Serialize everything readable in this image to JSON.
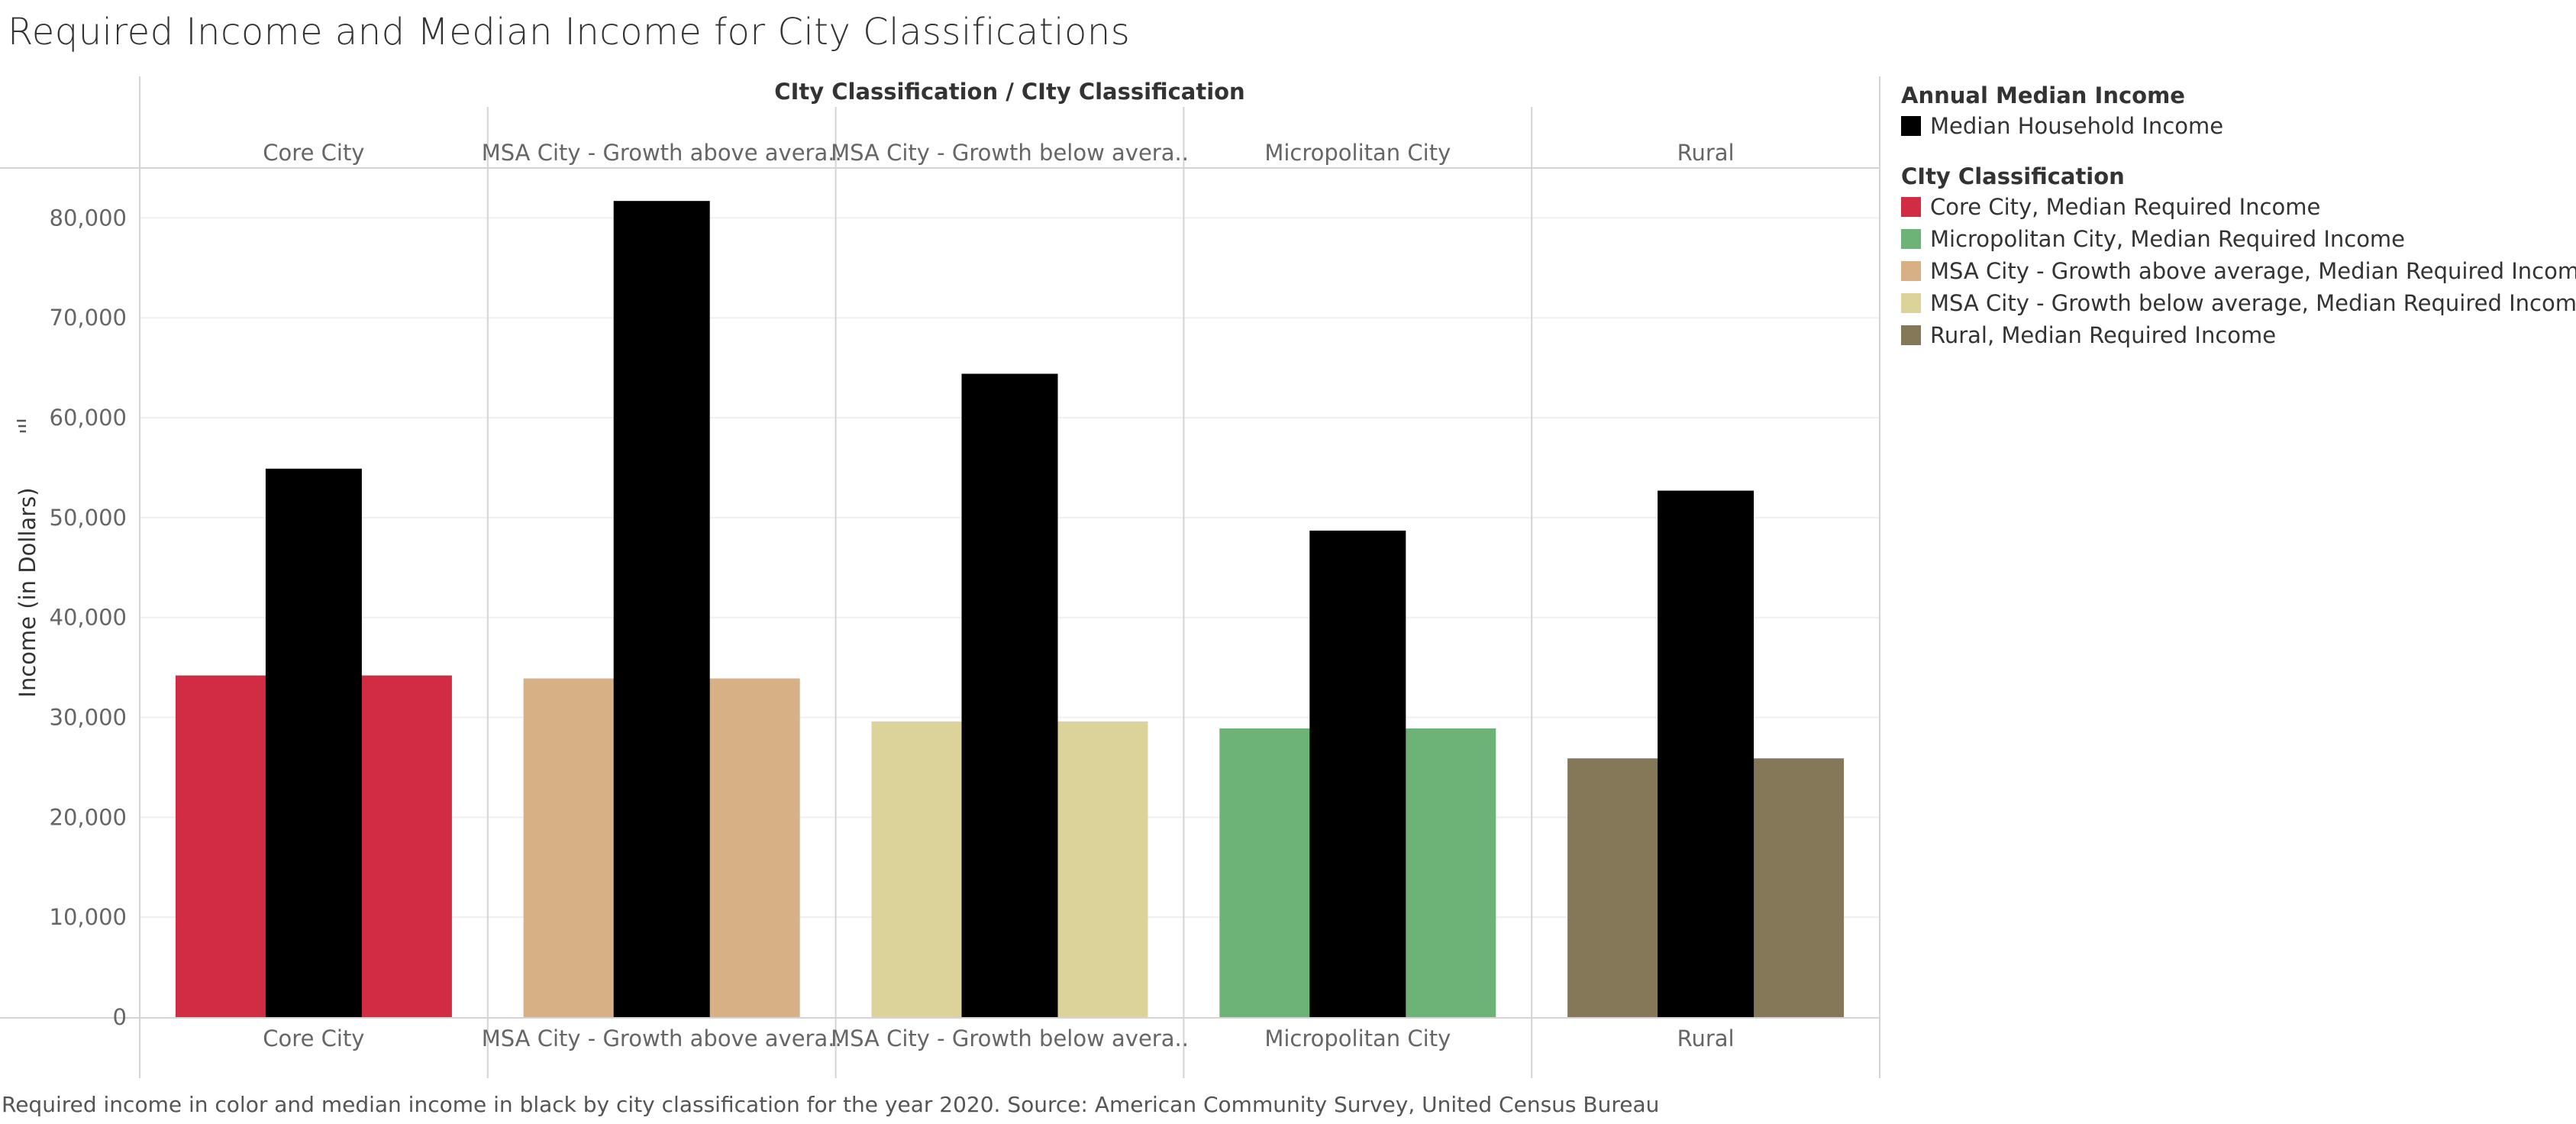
{
  "title": "Required Income and Median Income for City Classifications",
  "footer": "Required income in color and median income in black by city classification for the year 2020. Source: American Community Survey, United Census Bureau",
  "chart_data": {
    "type": "bar",
    "header_title": "CIty Classification  /  CIty Classification",
    "categories": [
      "Core City",
      "MSA City - Growth above avera..",
      "MSA City - Growth below avera..",
      "Micropolitan City",
      "Rural"
    ],
    "ylabel": "Income (in Dollars)",
    "ylabel_icon": "sort-icon",
    "ylim": [
      0,
      85000
    ],
    "yticks": [
      0,
      10000,
      20000,
      30000,
      40000,
      50000,
      60000,
      70000,
      80000
    ],
    "ytick_labels": [
      "0",
      "10,000",
      "20,000",
      "30,000",
      "40,000",
      "50,000",
      "60,000",
      "70,000",
      "80,000"
    ],
    "grid": true,
    "series": [
      {
        "name": "Median Required Income",
        "values": [
          34200,
          33900,
          29600,
          28900,
          25900
        ],
        "colors": [
          "#d12c43",
          "#d8b085",
          "#dcd39a",
          "#6db378",
          "#857858"
        ]
      },
      {
        "name": "Median Household Income",
        "values": [
          54900,
          81700,
          64400,
          48700,
          52700
        ],
        "color": "#000000"
      }
    ]
  },
  "legend": {
    "group1_title": "Annual Median Income",
    "group1_items": [
      {
        "label": "Median Household Income",
        "color": "#000000"
      }
    ],
    "group2_title": "CIty Classification",
    "group2_items": [
      {
        "label": "Core City, Median Required Income",
        "color": "#d12c43"
      },
      {
        "label": "Micropolitan City, Median Required Income",
        "color": "#6db378"
      },
      {
        "label": "MSA City - Growth above average, Median Required Income",
        "color": "#d8b085"
      },
      {
        "label": "MSA City - Growth below average, Median Required Income",
        "color": "#dcd39a"
      },
      {
        "label": "Rural, Median Required Income",
        "color": "#857858"
      }
    ]
  }
}
